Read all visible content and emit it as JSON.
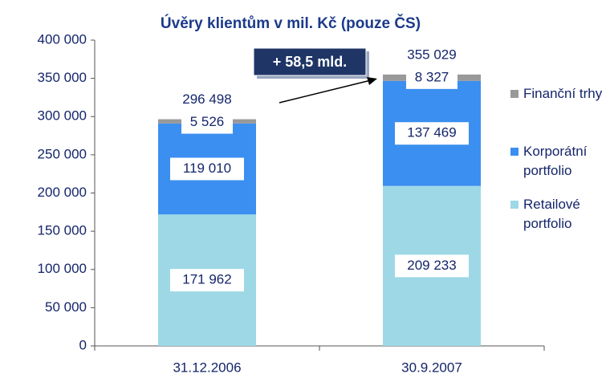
{
  "chart_data": {
    "type": "stacked-bar",
    "title": "Úvěry klientům v mil. Kč (pouze ČS)",
    "categories": [
      "31.12.2006",
      "30.9.2007"
    ],
    "series": [
      {
        "name": "Retailové portfolio",
        "color": "#9ed8e6",
        "values": [
          171962,
          209233
        ],
        "value_labels": [
          "171 962",
          "209 233"
        ]
      },
      {
        "name": "Korporátní portfolio",
        "color": "#3b8ff0",
        "values": [
          119010,
          137469
        ],
        "value_labels": [
          "119 010",
          "137 469"
        ]
      },
      {
        "name": "Finanční trhy",
        "color": "#999999",
        "values": [
          5526,
          8327
        ],
        "value_labels": [
          "5 526",
          "8 327"
        ]
      }
    ],
    "totals": {
      "values": [
        296498,
        355029
      ],
      "value_labels": [
        "296 498",
        "355 029"
      ]
    },
    "annotation": "+ 58,5 mld.",
    "ylim": [
      0,
      400000
    ],
    "yticks": [
      0,
      {
        "value": 50000,
        "label": "50 000"
      },
      {
        "value": 100000,
        "label": "100 000"
      },
      {
        "value": 150000,
        "label": "150 000"
      },
      {
        "value": 200000,
        "label": "200 000"
      },
      {
        "value": 250000,
        "label": "250 000"
      },
      {
        "value": 300000,
        "label": "300 000"
      },
      {
        "value": 350000,
        "label": "350 000"
      },
      {
        "value": 400000,
        "label": "400 000"
      }
    ],
    "legend": "right"
  }
}
